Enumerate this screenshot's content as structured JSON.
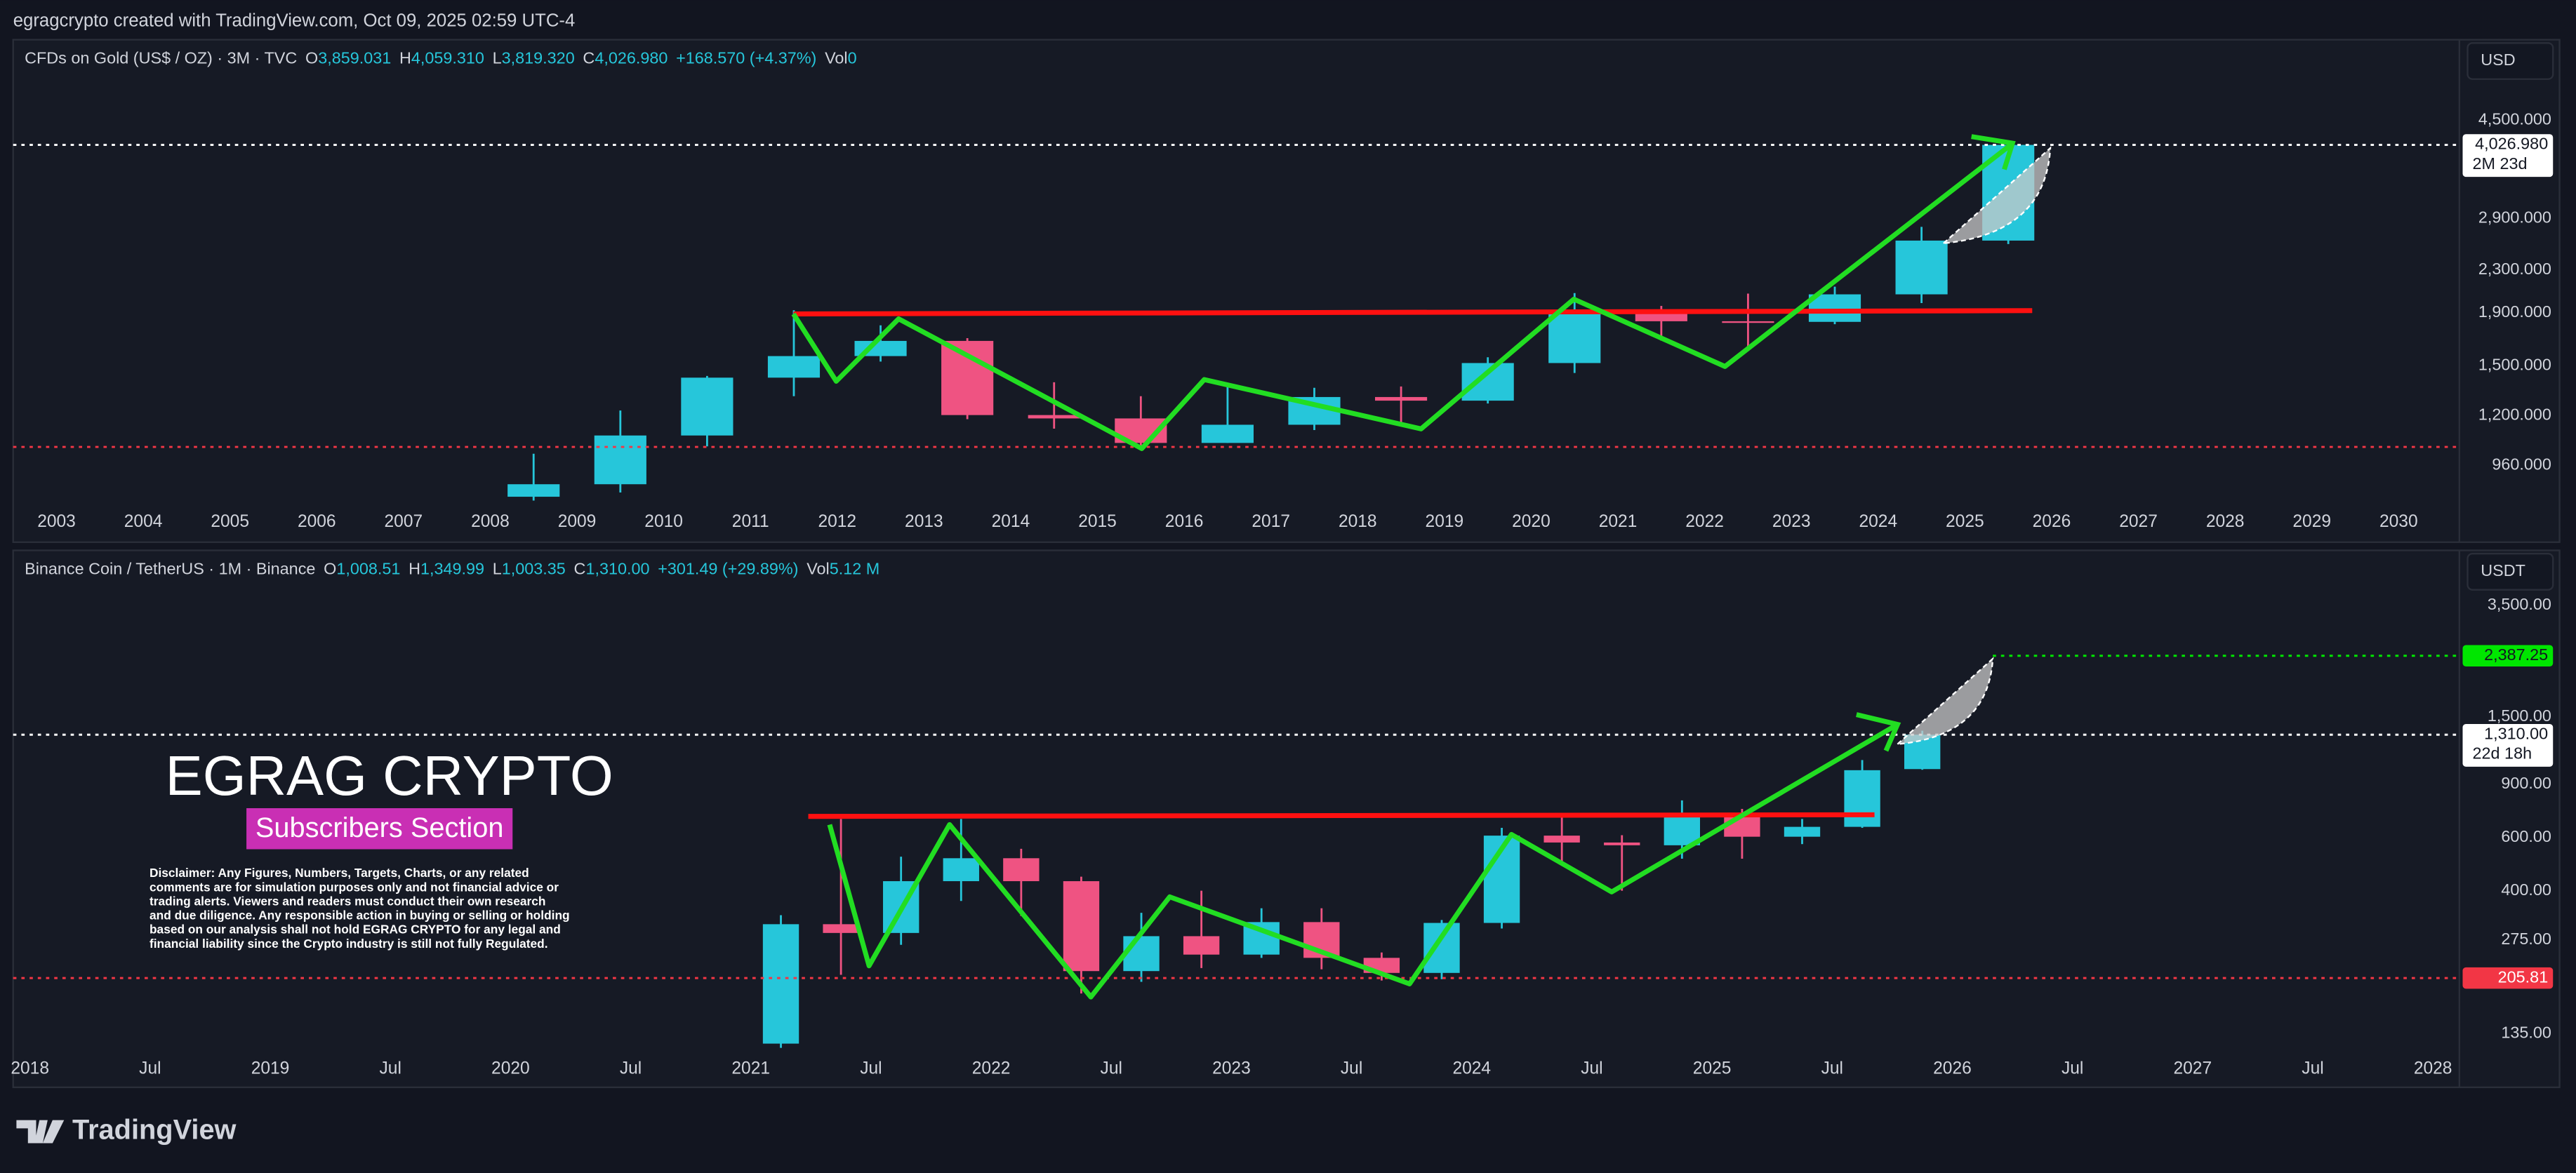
{
  "header": {
    "title": "egragcrypto created with TradingView.com, Oct 09, 2025 02:59 UTC-4"
  },
  "chart_data": [
    {
      "type": "candlestick",
      "symbol": "CFDs on Gold (US$ / OZ) · 3M · TVC",
      "ohlc_labels": [
        "O",
        "H",
        "L",
        "C"
      ],
      "ohlc_values": [
        "3,859.031",
        "4,059.310",
        "3,819.320",
        "4,026.980"
      ],
      "change": "+168.570 (+4.37%)",
      "volume_label": "Vol",
      "volume": "0",
      "currency": "USD",
      "x": [
        2008.5,
        2009.5,
        2010.5,
        2011.5,
        2012.5,
        2013.5,
        2014.5,
        2015.5,
        2016.5,
        2017.5,
        2018.5,
        2019.5,
        2020.5,
        2021.5,
        2022.5,
        2023.5,
        2024.5,
        2025.5
      ],
      "open": [
        834,
        882,
        1097,
        1421,
        1565,
        1675,
        1202,
        1184,
        1061,
        1151,
        1303,
        1282,
        1517,
        1898,
        1829,
        1824,
        2063,
        2624
      ],
      "high": [
        1011,
        1227,
        1432,
        1921,
        1796,
        1696,
        1392,
        1308,
        1375,
        1358,
        1366,
        1557,
        2075,
        1959,
        2070,
        2135,
        2790,
        4059.31
      ],
      "low": [
        820,
        850,
        1045,
        1308,
        1527,
        1180,
        1131,
        1046,
        1061,
        1124,
        1160,
        1266,
        1451,
        1677,
        1615,
        1805,
        1984,
        2584
      ],
      "close": [
        882,
        1097,
        1421,
        1565,
        1675,
        1202,
        1184,
        1061,
        1151,
        1303,
        1282,
        1517,
        1898,
        1829,
        1824,
        2063,
        2624,
        4026.98
      ],
      "up_color": "#26c6da",
      "down_color": "#ef5382",
      "log_scale": true,
      "xlim": [
        2002.5,
        2030.7
      ],
      "xticks": [
        2003,
        2004,
        2005,
        2006,
        2007,
        2008,
        2009,
        2010,
        2011,
        2012,
        2013,
        2014,
        2015,
        2016,
        2017,
        2018,
        2019,
        2020,
        2021,
        2022,
        2023,
        2024,
        2025,
        2026,
        2027,
        2028,
        2029,
        2030
      ],
      "ylim": [
        800,
        6400
      ],
      "yticks": [
        {
          "value": 960,
          "label": "960.000"
        },
        {
          "value": 1200,
          "label": "1,200.000"
        },
        {
          "value": 1500,
          "label": "1,500.000"
        },
        {
          "value": 1900,
          "label": "1,900.000"
        },
        {
          "value": 2300,
          "label": "2,300.000"
        },
        {
          "value": 2900,
          "label": "2,900.000"
        },
        {
          "value": 4500,
          "label": "4,500.000"
        }
      ],
      "price_lines": [
        {
          "value": 4026.98,
          "label": "4,026.980",
          "countdown": "2M 23d",
          "color": "#ffffff"
        }
      ]
    },
    {
      "type": "candlestick",
      "symbol": "Binance Coin / TetherUS · 1M · Binance",
      "ohlc_labels": [
        "O",
        "H",
        "L",
        "C"
      ],
      "ohlc_values": [
        "1,008.51",
        "1,349.99",
        "1,003.35",
        "1,310.00"
      ],
      "change": "+301.49 (+29.89%)",
      "volume_label": "Vol",
      "volume": "5.12 M",
      "currency": "USDT",
      "x": [
        2021.125,
        2021.375,
        2021.625,
        2021.875,
        2022.125,
        2022.375,
        2022.625,
        2022.875,
        2023.125,
        2023.375,
        2023.625,
        2023.875,
        2024.125,
        2024.375,
        2024.625,
        2024.875,
        2025.125,
        2025.375,
        2025.625,
        2025.875
      ],
      "open": [
        125,
        310,
        290,
        430,
        512,
        430,
        217,
        283,
        246,
        315,
        240,
        214,
        313,
        608,
        577,
        565,
        702,
        603,
        650,
        1008.51
      ],
      "high": [
        332,
        690,
        518,
        690,
        550,
        445,
        338,
        400,
        350,
        350,
        250,
        320,
        645,
        720,
        610,
        795,
        745,
        690,
        1080,
        1349.99
      ],
      "low": [
        121,
        211,
        265,
        370,
        330,
        183,
        200,
        222,
        240,
        220,
        202,
        204,
        300,
        495,
        400,
        510,
        510,
        570,
        645,
        1003.35
      ],
      "close": [
        310,
        290,
        430,
        512,
        430,
        217,
        283,
        246,
        315,
        240,
        214,
        313,
        608,
        577,
        565,
        702,
        603,
        650,
        1000,
        1310
      ],
      "up_color": "#26c6da",
      "down_color": "#ef5382",
      "log_scale": true,
      "xlim": [
        2017.93,
        2028.11
      ],
      "xticks": [
        2018,
        {
          "value": 2018.5,
          "label": "Jul"
        },
        2019,
        {
          "value": 2019.5,
          "label": "Jul"
        },
        2020,
        {
          "value": 2020.5,
          "label": "Jul"
        },
        2021,
        {
          "value": 2021.5,
          "label": "Jul"
        },
        2022,
        {
          "value": 2022.5,
          "label": "Jul"
        },
        2023,
        {
          "value": 2023.5,
          "label": "Jul"
        },
        2024,
        {
          "value": 2024.5,
          "label": "Jul"
        },
        2025,
        {
          "value": 2025.5,
          "label": "Jul"
        },
        2026,
        {
          "value": 2026.5,
          "label": "Jul"
        },
        2027,
        {
          "value": 2027.5,
          "label": "Jul"
        },
        2028
      ],
      "ylim": [
        118,
        5000
      ],
      "yticks": [
        {
          "value": 135,
          "label": "135.00"
        },
        {
          "value": 275,
          "label": "275.00"
        },
        {
          "value": 400,
          "label": "400.00"
        },
        {
          "value": 600,
          "label": "600.00"
        },
        {
          "value": 900,
          "label": "900.00"
        },
        {
          "value": 1500,
          "label": "1,500.00"
        },
        {
          "value": 3500,
          "label": "3,500.00"
        }
      ],
      "price_lines": [
        {
          "value": 2387.25,
          "label": "2,387.25",
          "color": "#00e600"
        },
        {
          "value": 1310,
          "label": "1,310.00",
          "countdown": "22d 18h",
          "color": "#ffffff"
        },
        {
          "value": 205.81,
          "label": "205.81",
          "color": "#f23645"
        }
      ]
    }
  ],
  "overlay": {
    "title": "EGRAG CRYPTO",
    "badge": "Subscribers Section",
    "disclaimer": [
      "Disclaimer: Any Figures, Numbers, Targets, Charts, or any related",
      "comments are for simulation purposes only and not financial advice or",
      "trading alerts. Viewers and readers must conduct their own research",
      "and due diligence. Any responsible action in buying or selling or holding",
      "based on our analysis shall not hold EGRAG CRYPTO for any legal and",
      "financial liability since the Crypto industry is still not fully Regulated."
    ]
  },
  "footer": {
    "brand": "TradingView"
  }
}
